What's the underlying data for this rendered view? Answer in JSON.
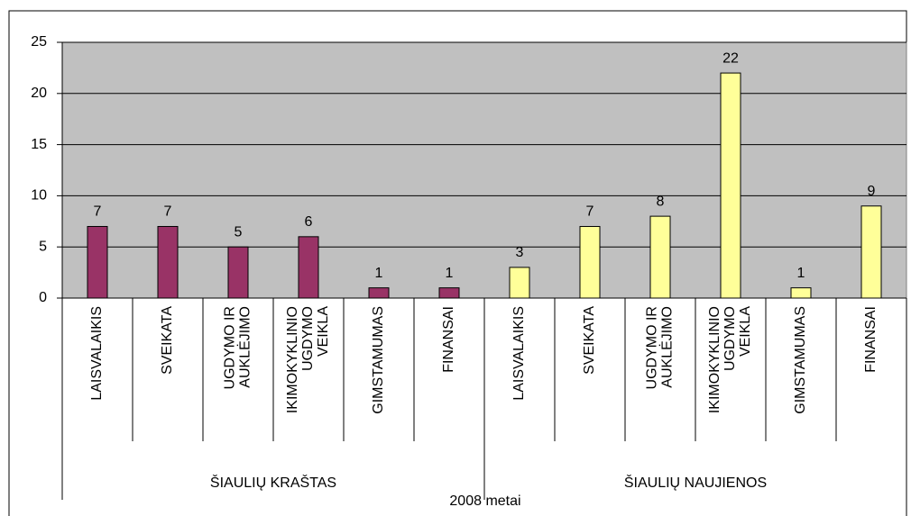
{
  "chart_data": {
    "type": "bar",
    "x_label": "2008 metai",
    "ylim": [
      0,
      25
    ],
    "yticks": [
      0,
      5,
      10,
      15,
      20,
      25
    ],
    "grid": true,
    "groups": [
      {
        "name": "ŠIAULIŲ KRAŠTAS",
        "color": "#993366",
        "categories": [
          "LAISVALAIKIS",
          "SVEIKATA",
          "UGDYMO IR\nAUKLĖJIMO",
          "IKIMOKYKLINIO\nUGDYMO\nVEIKLA",
          "GIMSTAMUMAS",
          "FINANSAI"
        ],
        "values": [
          7,
          7,
          5,
          6,
          1,
          1
        ]
      },
      {
        "name": "ŠIAULIŲ NAUJIENOS",
        "color": "#ffff99",
        "categories": [
          "LAISVALAIKIS",
          "SVEIKATA",
          "UGDYMO IR\nAUKLĖJIMO",
          "IKIMOKYKLINIO\nUGDYMO\nVEIKLA",
          "GIMSTAMUMAS",
          "FINANSAI"
        ],
        "values": [
          3,
          7,
          8,
          22,
          1,
          9
        ]
      }
    ]
  }
}
